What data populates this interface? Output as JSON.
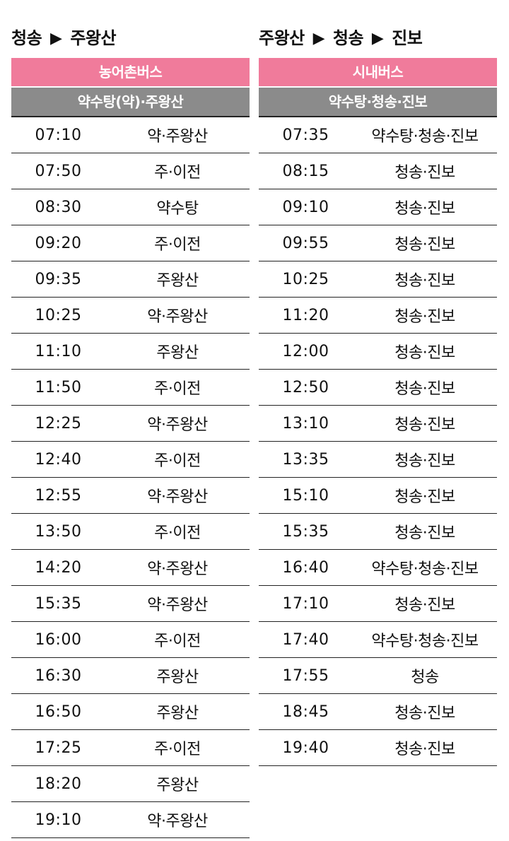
{
  "left": {
    "title_from": "청송",
    "title_arrow": "▶",
    "title_to": "주왕산",
    "bus_type": "농어촌버스",
    "route": "약수탕(약)·주왕산",
    "rows": [
      {
        "time": "07:10",
        "dest": "약·주왕산"
      },
      {
        "time": "07:50",
        "dest": "주·이전"
      },
      {
        "time": "08:30",
        "dest": "약수탕"
      },
      {
        "time": "09:20",
        "dest": "주·이전"
      },
      {
        "time": "09:35",
        "dest": "주왕산"
      },
      {
        "time": "10:25",
        "dest": "약·주왕산"
      },
      {
        "time": "11:10",
        "dest": "주왕산"
      },
      {
        "time": "11:50",
        "dest": "주·이전"
      },
      {
        "time": "12:25",
        "dest": "약·주왕산"
      },
      {
        "time": "12:40",
        "dest": "주·이전"
      },
      {
        "time": "12:55",
        "dest": "약·주왕산"
      },
      {
        "time": "13:50",
        "dest": "주·이전"
      },
      {
        "time": "14:20",
        "dest": "약·주왕산"
      },
      {
        "time": "15:35",
        "dest": "약·주왕산"
      },
      {
        "time": "16:00",
        "dest": "주·이전"
      },
      {
        "time": "16:30",
        "dest": "주왕산"
      },
      {
        "time": "16:50",
        "dest": "주왕산"
      },
      {
        "time": "17:25",
        "dest": "주·이전"
      },
      {
        "time": "18:20",
        "dest": "주왕산"
      },
      {
        "time": "19:10",
        "dest": "약·주왕산"
      }
    ]
  },
  "right": {
    "title_from": "주왕산",
    "title_arrow": "▶",
    "title_mid": "청송",
    "title_arrow2": "▶",
    "title_to": "진보",
    "bus_type": "시내버스",
    "route": "약수탕·청송·진보",
    "rows": [
      {
        "time": "07:35",
        "dest": "약수탕·청송·진보"
      },
      {
        "time": "08:15",
        "dest": "청송·진보"
      },
      {
        "time": "09:10",
        "dest": "청송·진보"
      },
      {
        "time": "09:55",
        "dest": "청송·진보"
      },
      {
        "time": "10:25",
        "dest": "청송·진보"
      },
      {
        "time": "11:20",
        "dest": "청송·진보"
      },
      {
        "time": "12:00",
        "dest": "청송·진보"
      },
      {
        "time": "12:50",
        "dest": "청송·진보"
      },
      {
        "time": "13:10",
        "dest": "청송·진보"
      },
      {
        "time": "13:35",
        "dest": "청송·진보"
      },
      {
        "time": "15:10",
        "dest": "청송·진보"
      },
      {
        "time": "15:35",
        "dest": "청송·진보"
      },
      {
        "time": "16:40",
        "dest": "약수탕·청송·진보"
      },
      {
        "time": "17:10",
        "dest": "청송·진보"
      },
      {
        "time": "17:40",
        "dest": "약수탕·청송·진보"
      },
      {
        "time": "17:55",
        "dest": "청송"
      },
      {
        "time": "18:45",
        "dest": "청송·진보"
      },
      {
        "time": "19:40",
        "dest": "청송·진보"
      }
    ]
  },
  "colors": {
    "bus_type_bg": "#f07b9b",
    "route_bg": "#8b8b8b",
    "rule": "#222222"
  }
}
